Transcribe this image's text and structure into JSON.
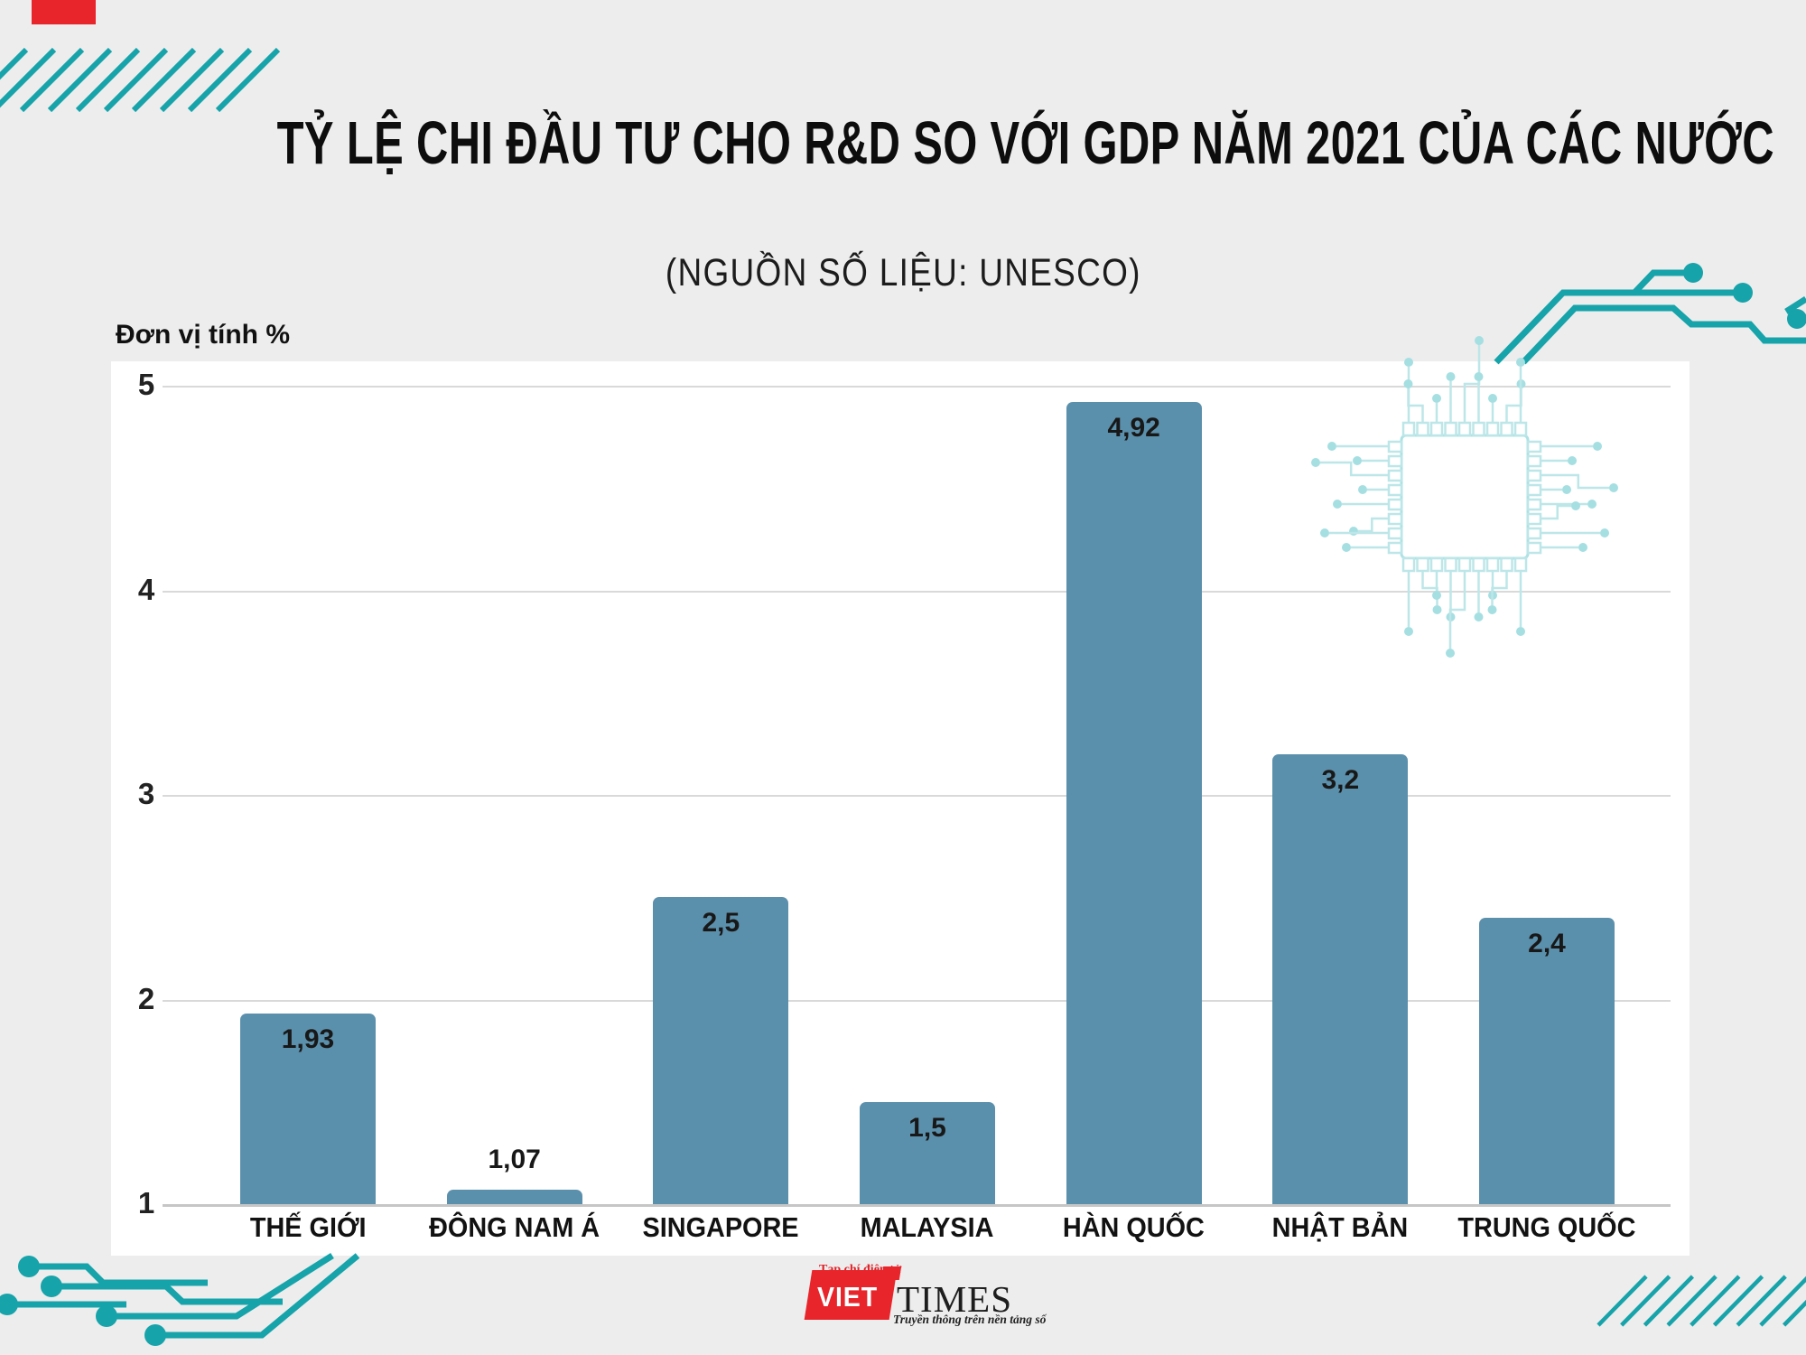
{
  "header": {
    "title": "TỶ LỆ CHI ĐẦU TƯ CHO R&D SO VỚI GDP NĂM 2021 CỦA CÁC NƯỚC",
    "subtitle": "(NGUỒN SỐ LIỆU: UNESCO)"
  },
  "chart_data": {
    "type": "bar",
    "title": "TỶ LỆ CHI ĐẦU TƯ CHO R&D SO VỚI GDP NĂM 2021 CỦA CÁC NƯỚC",
    "subtitle": "(NGUỒN SỐ LIỆU: UNESCO)",
    "unit_label": "Đơn vị tính %",
    "categories": [
      "THẾ GIỚI",
      "ĐÔNG NAM Á",
      "SINGAPORE",
      "MALAYSIA",
      "HÀN QUỐC",
      "NHẬT BẢN",
      "TRUNG QUỐC"
    ],
    "values": [
      1.93,
      1.07,
      2.5,
      1.5,
      4.92,
      3.2,
      2.4
    ],
    "value_labels": [
      "1,93",
      "1,07",
      "2,5",
      "1,5",
      "4,92",
      "3,2",
      "2,4"
    ],
    "xlabel": "",
    "ylabel": "Đơn vị tính %",
    "ylim": [
      1,
      5
    ],
    "y_ticks": [
      5,
      4,
      3,
      2,
      1
    ],
    "grid": true,
    "legend": "none",
    "bar_color": "#5b90ac"
  },
  "logo": {
    "topline": "Tạp chí điện tử",
    "name_left": "VIET",
    "name_right": "TIMES",
    "tagline": "Truyền thông trên nền tảng số"
  },
  "colors": {
    "background": "#ededed",
    "panel": "#ffffff",
    "bar": "#5b90ac",
    "teal_accent": "#16a3aa",
    "pale_teal": "#bde6e8",
    "gridline": "#d9d9d9",
    "logo_red": "#e8252b",
    "text": "#111111"
  }
}
